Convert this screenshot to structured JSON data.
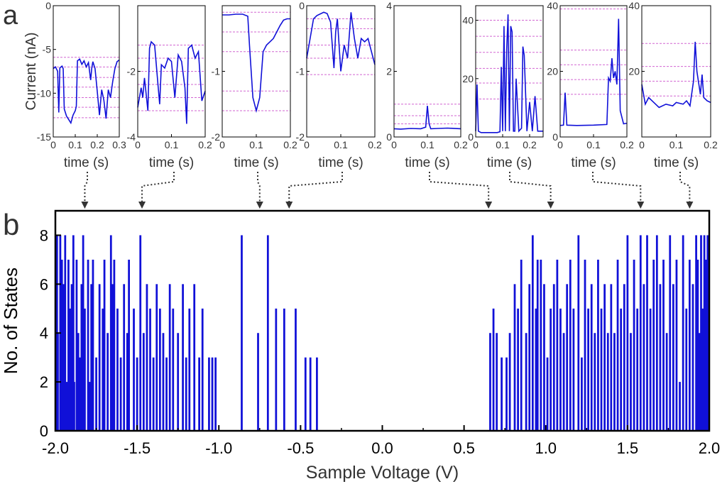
{
  "panel_labels": {
    "a": "a",
    "b": "b"
  },
  "colors": {
    "trace": "#1010d8",
    "level": "#d266d2",
    "arrow": "#333333",
    "axis": "#000000"
  },
  "chart_data": [
    {
      "id": "a1",
      "type": "line",
      "xlabel": "time (s)",
      "ylabel": "Current (nA)",
      "xlim": [
        0,
        0.3
      ],
      "ylim": [
        -15,
        0
      ],
      "xticks": [
        "0",
        "0.1",
        "0.2",
        "0.3"
      ],
      "xtick_values": [
        0,
        0.1,
        0.2,
        0.3
      ],
      "yticks": [
        "0",
        "-5",
        "-10",
        "-15"
      ],
      "ytick_values": [
        0,
        -5,
        -10,
        -15
      ],
      "levels": [
        -5.9,
        -7.0,
        -8.2,
        -9.3,
        -10.5,
        -11.6,
        -12.8
      ],
      "x": [
        0,
        0.01,
        0.02,
        0.025,
        0.03,
        0.04,
        0.045,
        0.05,
        0.06,
        0.07,
        0.08,
        0.09,
        0.1,
        0.105,
        0.11,
        0.12,
        0.13,
        0.14,
        0.15,
        0.16,
        0.17,
        0.175,
        0.18,
        0.19,
        0.2,
        0.21,
        0.22,
        0.23,
        0.24,
        0.25,
        0.26,
        0.27,
        0.28,
        0.29,
        0.3
      ],
      "y": [
        -7.2,
        -7.0,
        -7.5,
        -12.2,
        -7.1,
        -6.9,
        -7.2,
        -11.8,
        -12.6,
        -13.0,
        -13.4,
        -12.5,
        -12.0,
        -11.5,
        -6.3,
        -6.1,
        -6.7,
        -6.3,
        -7.0,
        -6.5,
        -8.5,
        -7.1,
        -6.4,
        -7.2,
        -9.8,
        -12.5,
        -9.6,
        -10.8,
        -12.9,
        -9.6,
        -10.5,
        -8.7,
        -7.2,
        -6.4,
        -6.2
      ]
    },
    {
      "id": "a2",
      "type": "line",
      "xlabel": "time (s)",
      "ylabel": "",
      "xlim": [
        0,
        0.2
      ],
      "ylim": [
        -4,
        0
      ],
      "xticks": [
        "0",
        "0.1",
        "0.2"
      ],
      "xtick_values": [
        0,
        0.1,
        0.2
      ],
      "yticks": [
        "-2",
        "-4"
      ],
      "ytick_values": [
        -2,
        -4
      ],
      "levels": [
        -1.2,
        -1.6,
        -2.0,
        -2.4,
        -2.8,
        -3.2
      ],
      "x": [
        0,
        0.01,
        0.015,
        0.02,
        0.03,
        0.035,
        0.04,
        0.05,
        0.06,
        0.065,
        0.07,
        0.08,
        0.09,
        0.1,
        0.11,
        0.12,
        0.13,
        0.14,
        0.145,
        0.15,
        0.16,
        0.17,
        0.18,
        0.19,
        0.2
      ],
      "y": [
        -3.1,
        -2.5,
        -2.8,
        -2.2,
        -3.2,
        -1.3,
        -1.1,
        -1.2,
        -2.4,
        -3.0,
        -1.8,
        -1.9,
        -1.6,
        -1.7,
        -2.8,
        -1.5,
        -1.7,
        -2.5,
        -3.6,
        -1.3,
        -1.2,
        -1.6,
        -1.4,
        -2.9,
        -2.6
      ]
    },
    {
      "id": "a3",
      "type": "line",
      "xlabel": "time (s)",
      "ylabel": "",
      "xlim": [
        0,
        0.2
      ],
      "ylim": [
        -2,
        0
      ],
      "xticks": [
        "0",
        "0.1",
        "0.2"
      ],
      "xtick_values": [
        0,
        0.1,
        0.2
      ],
      "yticks": [
        "-1",
        "-2"
      ],
      "ytick_values": [
        -1,
        -2
      ],
      "levels": [
        -0.1,
        -0.4,
        -0.7,
        -1.3,
        -1.6
      ],
      "x": [
        0,
        0.02,
        0.04,
        0.06,
        0.075,
        0.08,
        0.09,
        0.095,
        0.1,
        0.11,
        0.12,
        0.13,
        0.14,
        0.15,
        0.16,
        0.17,
        0.18,
        0.19,
        0.2
      ],
      "y": [
        -0.14,
        -0.14,
        -0.13,
        -0.13,
        -0.16,
        -0.6,
        -1.4,
        -1.5,
        -1.6,
        -1.4,
        -0.7,
        -0.6,
        -0.55,
        -0.5,
        -0.4,
        -0.3,
        -0.22,
        -0.2,
        -0.2
      ]
    },
    {
      "id": "a4",
      "type": "line",
      "xlabel": "time (s)",
      "ylabel": "",
      "xlim": [
        0,
        0.2
      ],
      "ylim": [
        -2,
        0
      ],
      "xticks": [
        "0",
        "0.1",
        "0.2"
      ],
      "xtick_values": [
        0,
        0.1,
        0.2
      ],
      "yticks": [
        "0",
        "-1",
        "-2"
      ],
      "ytick_values": [
        0,
        -1,
        -2
      ],
      "levels": [
        -0.2,
        -0.35,
        -0.6,
        -0.8,
        -1.05
      ],
      "x": [
        0,
        0.01,
        0.02,
        0.03,
        0.05,
        0.06,
        0.07,
        0.08,
        0.085,
        0.09,
        0.1,
        0.11,
        0.12,
        0.13,
        0.14,
        0.15,
        0.16,
        0.17,
        0.18,
        0.19,
        0.2
      ],
      "y": [
        -0.8,
        -0.5,
        -0.2,
        -0.15,
        -0.1,
        -0.12,
        -0.25,
        -0.95,
        -0.4,
        -0.2,
        -1.0,
        -0.6,
        -0.8,
        -0.1,
        -0.5,
        -0.8,
        -0.5,
        -0.55,
        -0.5,
        -0.7,
        -0.9
      ]
    },
    {
      "id": "a5",
      "type": "line",
      "xlabel": "time (s)",
      "ylabel": "",
      "xlim": [
        0,
        0.2
      ],
      "ylim": [
        0,
        4
      ],
      "xticks": [
        "0",
        "0.1",
        "0.2"
      ],
      "xtick_values": [
        0,
        0.1,
        0.2
      ],
      "yticks": [
        "4",
        "2",
        "0"
      ],
      "ytick_values": [
        4,
        2,
        0
      ],
      "levels": [
        0.4,
        0.65,
        1.0
      ],
      "x": [
        0,
        0.02,
        0.05,
        0.08,
        0.095,
        0.1,
        0.105,
        0.11,
        0.13,
        0.16,
        0.2
      ],
      "y": [
        0.25,
        0.24,
        0.26,
        0.25,
        0.3,
        0.95,
        0.4,
        0.25,
        0.26,
        0.27,
        0.25
      ],
      "y_end_label": "2"
    },
    {
      "id": "a6",
      "type": "line",
      "xlabel": "time (s)",
      "ylabel": "",
      "xlim": [
        0,
        0.25
      ],
      "ylim": [
        0,
        45
      ],
      "xticks": [
        "0",
        "0.1",
        "0.2"
      ],
      "xtick_values": [
        0,
        0.1,
        0.2
      ],
      "yticks": [
        "40",
        "20",
        "0"
      ],
      "ytick_values": [
        40,
        20,
        0
      ],
      "levels": [
        13,
        18.5,
        23.5,
        29,
        34.5,
        40
      ],
      "x": [
        0,
        0.005,
        0.01,
        0.02,
        0.05,
        0.08,
        0.09,
        0.095,
        0.1,
        0.105,
        0.11,
        0.115,
        0.12,
        0.125,
        0.13,
        0.135,
        0.14,
        0.145,
        0.15,
        0.16,
        0.17,
        0.175,
        0.18,
        0.19,
        0.2,
        0.21,
        0.22,
        0.23,
        0.25
      ],
      "y": [
        2,
        18,
        2,
        1.5,
        1.5,
        1.5,
        1.8,
        24,
        2,
        38,
        2,
        30,
        42,
        2,
        38,
        36,
        2,
        2,
        20,
        2,
        3,
        31,
        28,
        2,
        12,
        2,
        14,
        2,
        2
      ]
    },
    {
      "id": "a7",
      "type": "line",
      "xlabel": "time (s)",
      "ylabel": "",
      "xlim": [
        0,
        0.2
      ],
      "ylim": [
        0,
        40
      ],
      "xticks": [
        "0",
        "0.1",
        "0.2"
      ],
      "xtick_values": [
        0,
        0.1,
        0.2
      ],
      "yticks": [
        "40",
        "20",
        "0"
      ],
      "ytick_values": [
        40,
        20,
        0
      ],
      "levels": [
        13,
        17.5,
        22,
        26.5,
        39
      ],
      "x": [
        0,
        0.01,
        0.015,
        0.02,
        0.05,
        0.1,
        0.14,
        0.145,
        0.15,
        0.155,
        0.16,
        0.165,
        0.17,
        0.175,
        0.18,
        0.19,
        0.2
      ],
      "y": [
        3.5,
        3.6,
        13.5,
        3.6,
        3.5,
        3.6,
        3.8,
        18,
        17,
        24,
        18,
        20,
        16,
        36,
        8,
        4,
        4.2
      ]
    },
    {
      "id": "a8",
      "type": "line",
      "xlabel": "time (s)",
      "ylabel": "",
      "xlim": [
        0,
        0.2
      ],
      "ylim": [
        0,
        40
      ],
      "xticks": [
        "0",
        "0.1",
        "0.2"
      ],
      "xtick_values": [
        0,
        0.1,
        0.2
      ],
      "yticks": [
        "40",
        "20"
      ],
      "ytick_values": [
        40,
        20
      ],
      "levels": [
        12.5,
        17,
        21.5,
        28.5
      ],
      "x": [
        0,
        0.01,
        0.02,
        0.03,
        0.05,
        0.07,
        0.09,
        0.1,
        0.12,
        0.13,
        0.14,
        0.15,
        0.155,
        0.16,
        0.17,
        0.175,
        0.18,
        0.19,
        0.2
      ],
      "y": [
        16,
        10,
        12,
        11,
        9,
        10,
        9.5,
        10.5,
        10,
        11,
        9.5,
        17,
        29,
        20,
        13,
        19,
        12,
        11,
        10.5
      ]
    },
    {
      "id": "b",
      "type": "bar",
      "xlabel": "Sample Voltage (V)",
      "ylabel": "No. of States",
      "xlim": [
        -2.0,
        2.0
      ],
      "ylim": [
        0,
        9
      ],
      "xticks": [
        "-2.0",
        "-1.5",
        "-1.0",
        "-0.5",
        "0.0",
        "0.5",
        "1.0",
        "1.5",
        "2.0"
      ],
      "xtick_values": [
        -2.0,
        -1.5,
        -1.0,
        -0.5,
        0.0,
        0.5,
        1.0,
        1.5,
        2.0
      ],
      "yticks": [
        "0",
        "2",
        "4",
        "6",
        "8"
      ],
      "ytick_values": [
        0,
        2,
        4,
        6,
        8
      ],
      "bar_width": 0.012,
      "x": [
        -1.99,
        -1.985,
        -1.97,
        -1.96,
        -1.95,
        -1.94,
        -1.93,
        -1.92,
        -1.91,
        -1.9,
        -1.89,
        -1.885,
        -1.87,
        -1.86,
        -1.85,
        -1.84,
        -1.83,
        -1.82,
        -1.8,
        -1.79,
        -1.78,
        -1.77,
        -1.75,
        -1.73,
        -1.71,
        -1.7,
        -1.68,
        -1.66,
        -1.65,
        -1.64,
        -1.62,
        -1.6,
        -1.58,
        -1.56,
        -1.55,
        -1.52,
        -1.5,
        -1.48,
        -1.46,
        -1.44,
        -1.42,
        -1.4,
        -1.38,
        -1.36,
        -1.34,
        -1.32,
        -1.3,
        -1.28,
        -1.25,
        -1.22,
        -1.2,
        -1.18,
        -1.15,
        -1.12,
        -1.1,
        -1.06,
        -1.04,
        -1.02,
        -0.86,
        -0.76,
        -0.7,
        -0.65,
        -0.6,
        -0.53,
        -0.47,
        -0.44,
        -0.4,
        0.66,
        0.68,
        0.7,
        0.73,
        0.76,
        0.78,
        0.81,
        0.83,
        0.85,
        0.88,
        0.9,
        0.92,
        0.94,
        0.95,
        0.97,
        0.99,
        1.01,
        1.03,
        1.05,
        1.07,
        1.09,
        1.11,
        1.13,
        1.15,
        1.17,
        1.2,
        1.22,
        1.24,
        1.26,
        1.28,
        1.3,
        1.32,
        1.34,
        1.36,
        1.38,
        1.4,
        1.42,
        1.44,
        1.46,
        1.48,
        1.5,
        1.52,
        1.54,
        1.56,
        1.58,
        1.6,
        1.62,
        1.64,
        1.66,
        1.68,
        1.7,
        1.72,
        1.74,
        1.76,
        1.78,
        1.8,
        1.82,
        1.84,
        1.86,
        1.88,
        1.9,
        1.92,
        1.93,
        1.94,
        1.95,
        1.96,
        1.97,
        1.98,
        1.99
      ],
      "values": [
        8,
        4,
        8,
        7,
        6,
        8,
        2,
        7,
        5,
        6,
        8,
        2,
        7,
        4,
        3,
        6,
        8,
        5,
        7,
        2,
        6,
        7,
        3,
        6,
        5,
        7,
        4,
        8,
        6,
        7,
        5,
        3,
        6,
        4,
        7,
        5,
        3,
        8,
        4,
        6,
        5,
        3,
        6,
        5,
        4,
        3,
        6,
        5,
        4,
        6,
        3,
        5,
        6,
        3,
        5,
        3,
        3,
        3,
        8,
        4,
        8,
        5,
        5,
        5,
        3,
        3,
        3,
        4,
        5,
        4,
        3,
        3,
        4,
        6,
        5,
        7,
        4,
        6,
        8,
        5,
        7,
        7,
        6,
        3,
        5,
        6,
        7,
        5,
        4,
        6,
        7,
        5,
        8,
        3,
        7,
        5,
        6,
        4,
        7,
        5,
        6,
        4,
        6,
        4,
        7,
        5,
        6,
        8,
        4,
        7,
        5,
        8,
        6,
        8,
        5,
        7,
        8,
        6,
        7,
        4,
        8,
        6,
        7,
        2,
        8,
        5,
        7,
        6,
        8,
        7,
        4,
        8,
        5,
        8,
        7,
        8
      ]
    }
  ]
}
